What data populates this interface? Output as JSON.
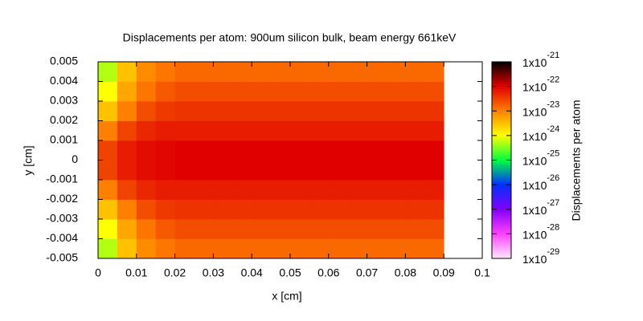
{
  "chart_data": {
    "type": "heatmap",
    "title": "Displacements per atom: 900um silicon bulk, beam energy 661keV",
    "xlabel": "x [cm]",
    "ylabel": "y [cm]",
    "colorbar_label": "Displacements per atom",
    "xlim": [
      0,
      0.1
    ],
    "ylim": [
      -0.005,
      0.005
    ],
    "xticks": [
      0,
      0.01,
      0.02,
      0.03,
      0.04,
      0.05,
      0.06,
      0.07,
      0.08,
      0.09,
      0.1
    ],
    "yticks": [
      0.005,
      0.004,
      0.003,
      0.002,
      0.001,
      0,
      -0.001,
      -0.002,
      -0.003,
      -0.004,
      -0.005
    ],
    "clim": [
      1e-29,
      1e-21
    ],
    "clog": true,
    "cticks": [
      {
        "value": 1e-21,
        "label": "1x10",
        "exponent": "-21"
      },
      {
        "value": 1e-22,
        "label": "1x10",
        "exponent": "-22"
      },
      {
        "value": 1e-23,
        "label": "1x10",
        "exponent": "-23"
      },
      {
        "value": 1e-24,
        "label": "1x10",
        "exponent": "-24"
      },
      {
        "value": 1e-25,
        "label": "1x10",
        "exponent": "-25"
      },
      {
        "value": 1e-26,
        "label": "1x10",
        "exponent": "-26"
      },
      {
        "value": 1e-27,
        "label": "1x10",
        "exponent": "-27"
      },
      {
        "value": 1e-28,
        "label": "1x10",
        "exponent": "-28"
      },
      {
        "value": 1e-29,
        "label": "1x10",
        "exponent": "-29"
      }
    ],
    "colormap": [
      "#ffe8ff",
      "#ff40ff",
      "#8000ff",
      "#0030ff",
      "#00ff40",
      "#ffff00",
      "#ff8000",
      "#e00000",
      "#000000"
    ],
    "xbins": [
      0,
      0.005,
      0.01,
      0.015,
      0.02,
      0.025,
      0.03,
      0.035,
      0.04,
      0.045,
      0.05,
      0.055,
      0.06,
      0.065,
      0.07,
      0.075,
      0.08,
      0.085,
      0.09
    ],
    "ybins": [
      -0.005,
      -0.004,
      -0.003,
      -0.002,
      -0.001,
      0,
      0.001,
      0.002,
      0.003,
      0.004,
      0.005
    ],
    "values": [
      [
        5e-25,
        3e-24,
        8e-24,
        1.2e-23,
        1.5e-23,
        1.5e-23,
        1.5e-23,
        1.5e-23,
        1.5e-23,
        1.5e-23,
        1.5e-23,
        1.5e-23,
        1.5e-23,
        1.5e-23,
        1.5e-23,
        1.5e-23,
        1.5e-23,
        1.5e-23
      ],
      [
        1e-24,
        5e-24,
        1.2e-23,
        2e-23,
        2.5e-23,
        2.5e-23,
        2.5e-23,
        2.5e-23,
        2.5e-23,
        2.5e-23,
        2.5e-23,
        2.5e-23,
        2.5e-23,
        2.5e-23,
        2.5e-23,
        2.5e-23,
        2.5e-23,
        2.5e-23
      ],
      [
        3e-24,
        1e-23,
        2.5e-23,
        3.5e-23,
        4e-23,
        4e-23,
        4e-23,
        4e-23,
        4e-23,
        4e-23,
        4e-23,
        4e-23,
        4e-23,
        4e-23,
        4e-23,
        4e-23,
        4e-23,
        4e-23
      ],
      [
        1e-23,
        3e-23,
        5e-23,
        6e-23,
        6e-23,
        6e-23,
        6e-23,
        6e-23,
        6e-23,
        6e-23,
        6e-23,
        6e-23,
        6e-23,
        6e-23,
        6e-23,
        6e-23,
        6e-23,
        6e-23
      ],
      [
        3e-23,
        6e-23,
        8e-23,
        9e-23,
        1e-22,
        1e-22,
        1e-22,
        1e-22,
        1e-22,
        1e-22,
        1e-22,
        1e-22,
        1e-22,
        1e-22,
        1e-22,
        1e-22,
        1e-22,
        1e-22
      ],
      [
        3e-23,
        6e-23,
        8e-23,
        9e-23,
        1e-22,
        1e-22,
        1e-22,
        1e-22,
        1e-22,
        1e-22,
        1e-22,
        1e-22,
        1e-22,
        1e-22,
        1e-22,
        1e-22,
        1e-22,
        1e-22
      ],
      [
        1e-23,
        3e-23,
        5e-23,
        6e-23,
        6e-23,
        6e-23,
        6e-23,
        6e-23,
        6e-23,
        6e-23,
        6e-23,
        6e-23,
        6e-23,
        6e-23,
        6e-23,
        6e-23,
        6e-23,
        6e-23
      ],
      [
        3e-24,
        1e-23,
        2.5e-23,
        3.5e-23,
        4e-23,
        4e-23,
        4e-23,
        4e-23,
        4e-23,
        4e-23,
        4e-23,
        4e-23,
        4e-23,
        4e-23,
        4e-23,
        4e-23,
        4e-23,
        4e-23
      ],
      [
        1e-24,
        5e-24,
        1.2e-23,
        2e-23,
        2.5e-23,
        2.5e-23,
        2.5e-23,
        2.5e-23,
        2.5e-23,
        2.5e-23,
        2.5e-23,
        2.5e-23,
        2.5e-23,
        2.5e-23,
        2.5e-23,
        2.5e-23,
        2.5e-23,
        2.5e-23
      ],
      [
        5e-25,
        3e-24,
        8e-24,
        1.2e-23,
        1.5e-23,
        1.5e-23,
        1.5e-23,
        1.5e-23,
        1.5e-23,
        1.5e-23,
        1.5e-23,
        1.5e-23,
        1.5e-23,
        1.5e-23,
        1.5e-23,
        1.5e-23,
        1.5e-23,
        1.5e-23
      ]
    ]
  }
}
